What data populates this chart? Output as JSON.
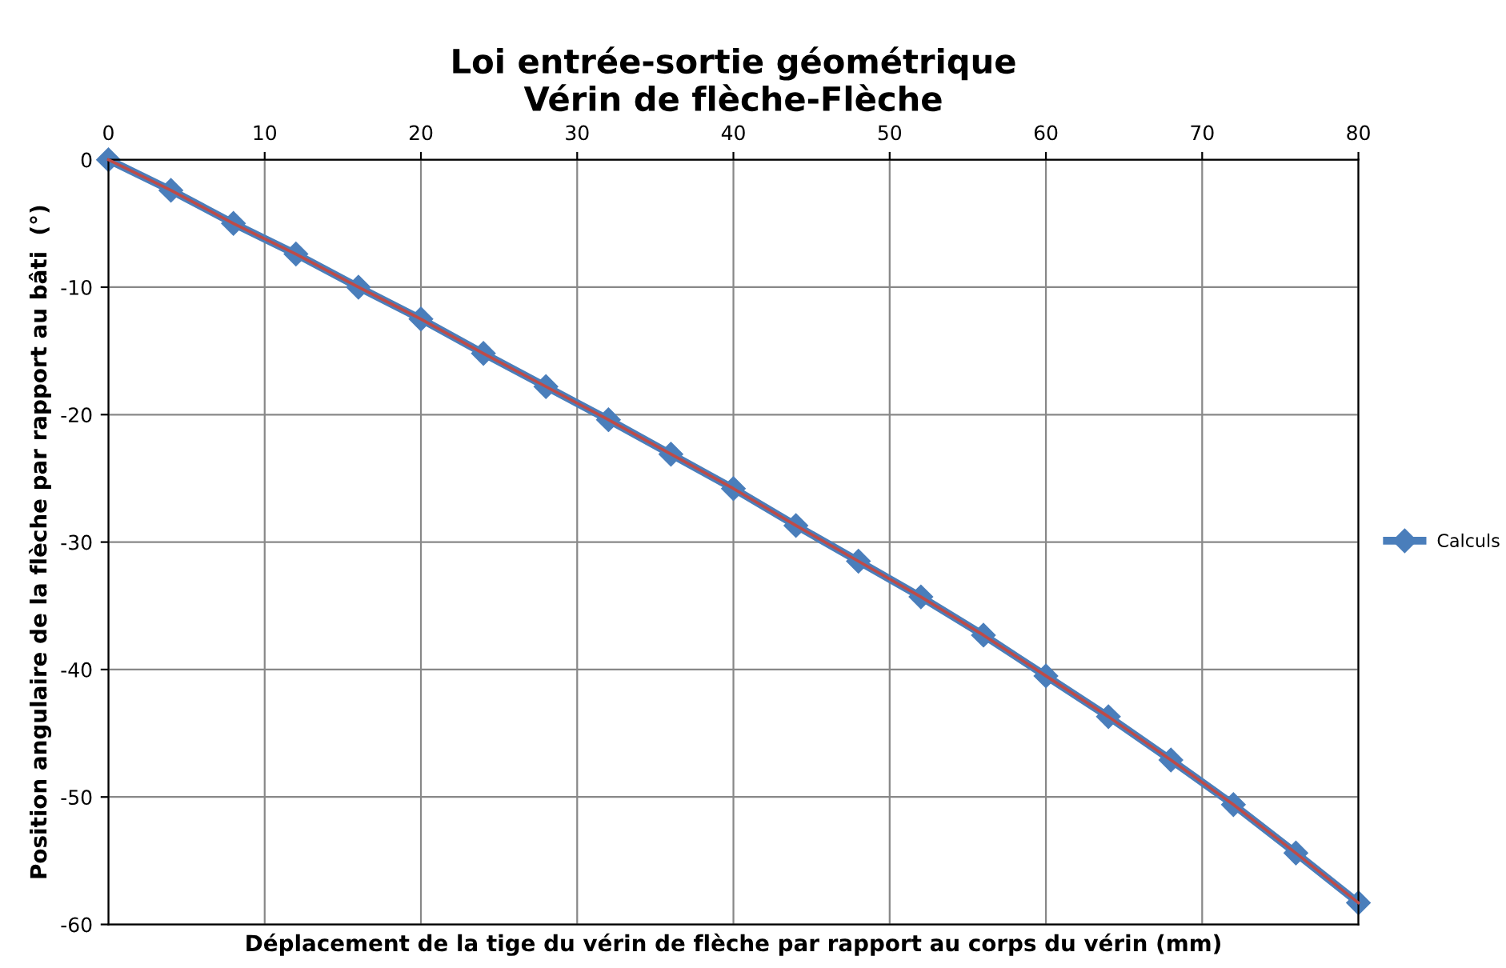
{
  "chart_data": {
    "type": "line",
    "title": "Loi entrée-sortie géométrique\nVérin de flèche-Flèche",
    "xlabel": "Déplacement de la tige du vérin de flèche par rapport au corps du vérin (mm)",
    "ylabel": "Position angulaire de la flèche par rapport au bâti  (°)",
    "x": [
      0,
      4,
      8,
      12,
      16,
      20,
      24,
      28,
      32,
      36,
      40,
      44,
      48,
      52,
      56,
      60,
      64,
      68,
      72,
      76,
      80
    ],
    "series": [
      {
        "name": "Calculs",
        "color": "#4a7ebb",
        "marker": "diamond",
        "values": [
          0,
          -2.4,
          -5.0,
          -7.4,
          -10.0,
          -12.5,
          -15.2,
          -17.8,
          -20.4,
          -23.1,
          -25.8,
          -28.7,
          -31.5,
          -34.3,
          -37.3,
          -40.5,
          -43.7,
          -47.1,
          -50.6,
          -54.4,
          -58.3
        ]
      },
      {
        "color": "#be4b48",
        "marker": "none",
        "values": [
          0,
          -2.4,
          -5.0,
          -7.4,
          -10.0,
          -12.5,
          -15.2,
          -17.8,
          -20.4,
          -23.1,
          -25.8,
          -28.7,
          -31.5,
          -34.3,
          -37.3,
          -40.5,
          -43.7,
          -47.1,
          -50.6,
          -54.4,
          -58.3
        ]
      }
    ],
    "xlim": [
      0,
      80
    ],
    "xticks": [
      0,
      10,
      20,
      30,
      40,
      50,
      60,
      70,
      80
    ],
    "ylim": [
      -60,
      0
    ],
    "yticks": [
      -60,
      -50,
      -40,
      -30,
      -20,
      -10,
      0
    ],
    "grid": true,
    "legend": "right",
    "line_style": "solid"
  }
}
